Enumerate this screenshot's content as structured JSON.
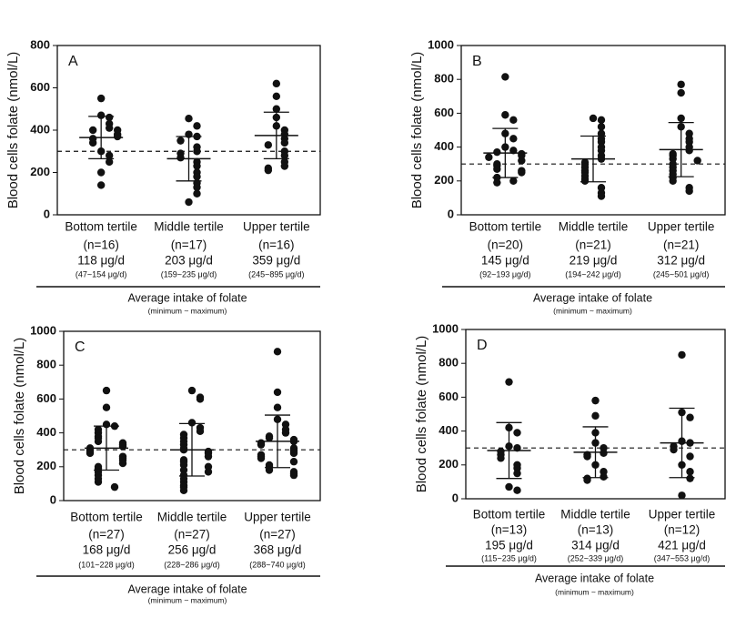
{
  "chart_data": [
    {
      "type": "dot",
      "panel_label": "A",
      "y_label": "Blood cells folate (nmol/L)",
      "x_title": "Average intake of folate",
      "x_subtitle": "(minimum ~ maximum)",
      "ylim": [
        0,
        800
      ],
      "yticks": [
        0,
        200,
        400,
        600,
        800
      ],
      "reference_line": 300,
      "groups": [
        {
          "name": "Bottom tertile",
          "n": "(n=16)",
          "intake": "118 μg/d",
          "range": "(47~154 μg/d)",
          "mean": 365,
          "sd": 100,
          "values": [
            550,
            470,
            460,
            430,
            410,
            400,
            400,
            380,
            370,
            360,
            340,
            300,
            280,
            250,
            200,
            140
          ]
        },
        {
          "name": "Middle tertile",
          "n": "(n=17)",
          "intake": "203 μg/d",
          "range": "(159~235 μg/d)",
          "mean": 265,
          "sd": 105,
          "values": [
            455,
            420,
            380,
            370,
            350,
            320,
            300,
            290,
            270,
            250,
            230,
            200,
            180,
            150,
            130,
            100,
            60
          ]
        },
        {
          "name": "Upper tertile",
          "n": "(n=16)",
          "intake": "359 μg/d",
          "range": "(245~895 μg/d)",
          "mean": 375,
          "sd": 110,
          "values": [
            620,
            560,
            500,
            460,
            420,
            400,
            380,
            360,
            340,
            330,
            300,
            280,
            250,
            230,
            220,
            210
          ]
        }
      ]
    },
    {
      "type": "dot",
      "panel_label": "B",
      "y_label": "Blood cells folate (nmol/L)",
      "x_title": "Average intake of folate",
      "x_subtitle": "(minimum ~ maximum)",
      "ylim": [
        0,
        1000
      ],
      "yticks": [
        0,
        200,
        400,
        600,
        800,
        1000
      ],
      "reference_line": 300,
      "groups": [
        {
          "name": "Bottom tertile",
          "n": "(n=20)",
          "intake": "145 μg/d",
          "range": "(92~193 μg/d)",
          "mean": 365,
          "sd": 145,
          "values": [
            815,
            590,
            560,
            480,
            450,
            400,
            380,
            370,
            360,
            350,
            340,
            320,
            300,
            290,
            270,
            260,
            250,
            220,
            200,
            190
          ]
        },
        {
          "name": "Middle tertile",
          "n": "(n=21)",
          "intake": "219 μg/d",
          "range": "(194~242 μg/d)",
          "mean": 330,
          "sd": 135,
          "values": [
            570,
            560,
            520,
            480,
            450,
            430,
            400,
            380,
            350,
            330,
            310,
            300,
            280,
            260,
            250,
            230,
            210,
            200,
            160,
            130,
            110
          ]
        },
        {
          "name": "Upper tertile",
          "n": "(n=21)",
          "intake": "312 μg/d",
          "range": "(245~501 μg/d)",
          "mean": 385,
          "sd": 160,
          "values": [
            770,
            720,
            570,
            520,
            480,
            450,
            430,
            400,
            380,
            360,
            350,
            330,
            320,
            300,
            280,
            260,
            240,
            220,
            200,
            160,
            140
          ]
        }
      ]
    },
    {
      "type": "dot",
      "panel_label": "C",
      "y_label": "Blood cells folate (nmol/L)",
      "x_title": "Average intake of folate",
      "x_subtitle": "(minimum ~ maximum)",
      "ylim": [
        0,
        1000
      ],
      "yticks": [
        0,
        200,
        400,
        600,
        800,
        1000
      ],
      "reference_line": 300,
      "groups": [
        {
          "name": "Bottom tertile",
          "n": "(n=27)",
          "intake": "168 μg/d",
          "range": "(101~228 μg/d)",
          "mean": 310,
          "sd": 130,
          "values": [
            650,
            550,
            450,
            440,
            420,
            400,
            380,
            370,
            350,
            340,
            330,
            320,
            310,
            300,
            290,
            280,
            260,
            250,
            240,
            220,
            200,
            190,
            170,
            150,
            130,
            110,
            80
          ]
        },
        {
          "name": "Middle tertile",
          "n": "(n=27)",
          "intake": "256 μg/d",
          "range": "(228~286 μg/d)",
          "mean": 300,
          "sd": 155,
          "values": [
            650,
            610,
            600,
            460,
            430,
            410,
            390,
            370,
            350,
            330,
            310,
            300,
            290,
            280,
            260,
            240,
            230,
            210,
            200,
            180,
            170,
            150,
            130,
            110,
            90,
            80,
            60
          ]
        },
        {
          "name": "Upper tertile",
          "n": "(n=27)",
          "intake": "368 μg/d",
          "range": "(288~740 μg/d)",
          "mean": 350,
          "sd": 155,
          "values": [
            880,
            640,
            550,
            480,
            450,
            420,
            400,
            380,
            370,
            360,
            350,
            340,
            330,
            310,
            300,
            290,
            280,
            270,
            260,
            250,
            230,
            210,
            200,
            180,
            170,
            160,
            150
          ]
        }
      ]
    },
    {
      "type": "dot",
      "panel_label": "D",
      "y_label": "Blood cells folate (nmol/L)",
      "x_title": "Average intake of folate",
      "x_subtitle": "(minimum ~ maximum)",
      "ylim": [
        0,
        1000
      ],
      "yticks": [
        0,
        200,
        400,
        600,
        800,
        1000
      ],
      "reference_line": 300,
      "groups": [
        {
          "name": "Bottom tertile",
          "n": "(n=13)",
          "intake": "195 μg/d",
          "range": "(115~235 μg/d)",
          "mean": 285,
          "sd": 165,
          "values": [
            690,
            420,
            390,
            310,
            300,
            280,
            260,
            240,
            200,
            180,
            150,
            70,
            50
          ]
        },
        {
          "name": "Middle tertile",
          "n": "(n=13)",
          "intake": "314 μg/d",
          "range": "(252~339 μg/d)",
          "mean": 275,
          "sd": 150,
          "values": [
            580,
            490,
            390,
            330,
            300,
            270,
            260,
            250,
            200,
            160,
            130,
            120,
            110
          ]
        },
        {
          "name": "Upper tertile",
          "n": "(n=12)",
          "intake": "421 μg/d",
          "range": "(347~553 μg/d)",
          "mean": 330,
          "sd": 205,
          "values": [
            850,
            510,
            480,
            340,
            330,
            310,
            290,
            250,
            200,
            160,
            120,
            20
          ]
        }
      ]
    }
  ]
}
